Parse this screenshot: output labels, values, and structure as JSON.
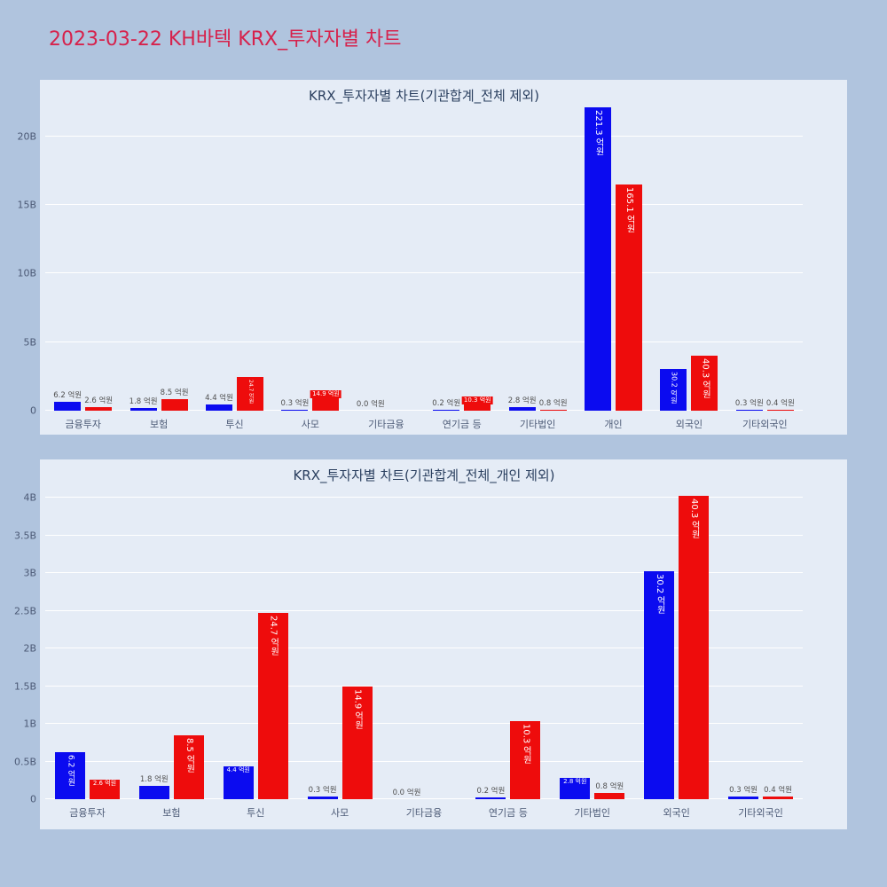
{
  "page": {
    "title": "2023-03-22 KH바텍 KRX_투자자별 차트"
  },
  "colors": {
    "page_bg": "#b0c4de",
    "chart_bg": "#e5ecf6",
    "bar_blue": "#0b0bf0",
    "bar_red": "#ee0c0c",
    "main_title_text": "#d6224c",
    "chart_title_text": "#2a3f5f",
    "axis_text": "#4c5a76",
    "outside_label_text": "#4f4f4f",
    "grid_line": "#ffffff"
  },
  "unit": "억원",
  "chart_data": [
    {
      "type": "bar",
      "title": "KRX_투자자별 차트(기관합계_전체 제외)",
      "categories": [
        "금융투자",
        "보험",
        "투신",
        "사모",
        "기타금융",
        "연기금 등",
        "기타법인",
        "개인",
        "외국인",
        "기타외국인"
      ],
      "series": [
        {
          "color_name": "blue",
          "color": "#0b0bf0",
          "values_eokwon": [
            6.2,
            1.8,
            4.4,
            0.3,
            0.0,
            0.2,
            2.8,
            221.3,
            30.2,
            0.3
          ],
          "labels": [
            "6.2 억원",
            "1.8 억원",
            "4.4 억원",
            "0.3 억원",
            "0.0 억원",
            "0.2 억원",
            "2.8 억원",
            "221.3 억원",
            "30.2 억원",
            "0.3 억원"
          ]
        },
        {
          "color_name": "red",
          "color": "#ee0c0c",
          "values_eokwon": [
            2.6,
            8.5,
            24.7,
            14.9,
            0.0,
            10.3,
            0.8,
            165.1,
            40.3,
            0.4
          ],
          "labels": [
            "2.6 억원",
            "8.5 억원",
            "24.7 억원",
            "14.9 억원",
            null,
            "10.3 억원",
            "0.8 억원",
            "165.1 억원",
            "40.3 억원",
            "0.4 억원"
          ]
        }
      ],
      "yticks": [
        {
          "value_b": 0,
          "label": "0"
        },
        {
          "value_b": 5,
          "label": "5B"
        },
        {
          "value_b": 10,
          "label": "10B"
        },
        {
          "value_b": 15,
          "label": "15B"
        },
        {
          "value_b": 20,
          "label": "20B"
        }
      ],
      "ylim_b": [
        0,
        22.3
      ],
      "grid": true,
      "legend": false
    },
    {
      "type": "bar",
      "title": "KRX_투자자별 차트(기관합계_전체_개인 제외)",
      "categories": [
        "금융투자",
        "보험",
        "투신",
        "사모",
        "기타금융",
        "연기금 등",
        "기타법인",
        "외국인",
        "기타외국인"
      ],
      "series": [
        {
          "color_name": "blue",
          "color": "#0b0bf0",
          "values_eokwon": [
            6.2,
            1.8,
            4.4,
            0.3,
            0.0,
            0.2,
            2.8,
            30.2,
            0.3
          ],
          "labels": [
            "6.2 억원",
            "1.8 억원",
            "4.4 억원",
            "0.3 억원",
            "0.0 억원",
            "0.2 억원",
            "2.8 억원",
            "30.2 억원",
            "0.3 억원"
          ]
        },
        {
          "color_name": "red",
          "color": "#ee0c0c",
          "values_eokwon": [
            2.6,
            8.5,
            24.7,
            14.9,
            0.0,
            10.3,
            0.8,
            40.3,
            0.4
          ],
          "labels": [
            "2.6 억원",
            "8.5 억원",
            "24.7 억원",
            "14.9 억원",
            null,
            "10.3 억원",
            "0.8 억원",
            "40.3 억원",
            "0.4 억원"
          ]
        }
      ],
      "yticks": [
        {
          "value_b": 0,
          "label": "0"
        },
        {
          "value_b": 0.5,
          "label": "0.5B"
        },
        {
          "value_b": 1,
          "label": "1B"
        },
        {
          "value_b": 1.5,
          "label": "1.5B"
        },
        {
          "value_b": 2,
          "label": "2B"
        },
        {
          "value_b": 2.5,
          "label": "2.5B"
        },
        {
          "value_b": 3,
          "label": "3B"
        },
        {
          "value_b": 3.5,
          "label": "3.5B"
        },
        {
          "value_b": 4,
          "label": "4B"
        }
      ],
      "ylim_b": [
        0,
        4.06
      ],
      "grid": true,
      "legend": false
    }
  ]
}
